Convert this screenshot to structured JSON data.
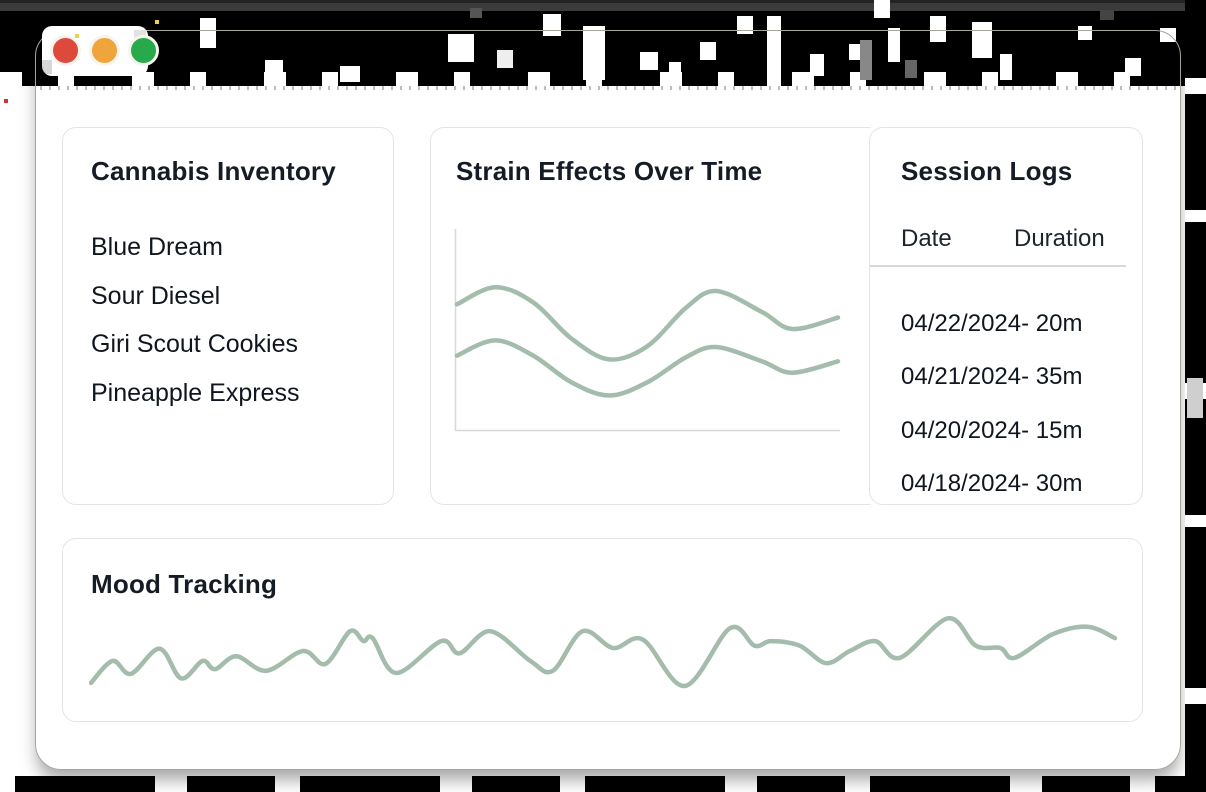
{
  "window": {
    "controls": [
      {
        "name": "close",
        "color": "#dd4a3b"
      },
      {
        "name": "minimize",
        "color": "#f0a53c"
      },
      {
        "name": "zoom",
        "color": "#28a94c"
      }
    ]
  },
  "inventory": {
    "title": "Cannabis Inventory",
    "items": [
      "Blue Dream",
      "Sour Diesel",
      "Giri Scout Cookies",
      "Pineapple Express"
    ]
  },
  "strain_chart": {
    "title": "Strain Effects Over Time"
  },
  "session_logs": {
    "title": "Session Logs",
    "columns": {
      "date": "Date",
      "duration": "Duration"
    },
    "rows": [
      "04/22/2024- 20m",
      "04/21/2024- 35m",
      "04/20/2024- 15m",
      "04/18/2024- 30m"
    ]
  },
  "mood": {
    "title": "Mood Tracking"
  },
  "colors": {
    "line": "#a3bcab",
    "axis": "#d8d8d8",
    "text": "#161c26",
    "card_border": "#e4e4e7"
  },
  "chart_data": [
    {
      "id": "strain",
      "type": "line",
      "title": "Strain Effects Over Time",
      "xlabel": "",
      "ylabel": "",
      "xlim": [
        0,
        1
      ],
      "ylim": [
        0,
        10
      ],
      "grid": false,
      "legend": "none",
      "series": [
        {
          "name": "effect-series-1",
          "points": [
            [
              0,
              6.3
            ],
            [
              0.1,
              7.2
            ],
            [
              0.2,
              6.4
            ],
            [
              0.3,
              4.5
            ],
            [
              0.4,
              3.4
            ],
            [
              0.5,
              4.1
            ],
            [
              0.6,
              6.1
            ],
            [
              0.68,
              7.0
            ],
            [
              0.8,
              5.9
            ],
            [
              0.88,
              5.0
            ],
            [
              1,
              5.6
            ]
          ]
        },
        {
          "name": "effect-series-2",
          "points": [
            [
              0,
              3.6
            ],
            [
              0.1,
              4.4
            ],
            [
              0.2,
              3.6
            ],
            [
              0.3,
              2.2
            ],
            [
              0.4,
              1.5
            ],
            [
              0.5,
              2.2
            ],
            [
              0.6,
              3.5
            ],
            [
              0.68,
              4.05
            ],
            [
              0.8,
              3.3
            ],
            [
              0.88,
              2.7
            ],
            [
              1,
              3.3
            ]
          ]
        }
      ]
    },
    {
      "id": "mood",
      "type": "line",
      "title": "Mood Tracking",
      "xlabel": "",
      "ylabel": "",
      "xlim": [
        0,
        1
      ],
      "ylim": [
        0,
        10
      ],
      "grid": false,
      "legend": "none",
      "series": [
        {
          "name": "mood-series",
          "points": [
            [
              0,
              0.8
            ],
            [
              0.021,
              3.7
            ],
            [
              0.039,
              2.0
            ],
            [
              0.067,
              5.3
            ],
            [
              0.088,
              1.4
            ],
            [
              0.109,
              3.7
            ],
            [
              0.121,
              2.6
            ],
            [
              0.142,
              4.3
            ],
            [
              0.171,
              2.4
            ],
            [
              0.207,
              5.0
            ],
            [
              0.229,
              3.3
            ],
            [
              0.253,
              7.6
            ],
            [
              0.266,
              6.3
            ],
            [
              0.275,
              6.7
            ],
            [
              0.298,
              2.1
            ],
            [
              0.342,
              6.3
            ],
            [
              0.36,
              4.7
            ],
            [
              0.39,
              7.6
            ],
            [
              0.429,
              3.7
            ],
            [
              0.451,
              2.4
            ],
            [
              0.48,
              7.6
            ],
            [
              0.51,
              5.4
            ],
            [
              0.539,
              6.5
            ],
            [
              0.58,
              0.4
            ],
            [
              0.624,
              8.0
            ],
            [
              0.648,
              5.7
            ],
            [
              0.664,
              6.3
            ],
            [
              0.692,
              5.7
            ],
            [
              0.718,
              3.4
            ],
            [
              0.741,
              5.0
            ],
            [
              0.766,
              6.3
            ],
            [
              0.79,
              4.1
            ],
            [
              0.837,
              9.3
            ],
            [
              0.864,
              5.7
            ],
            [
              0.888,
              5.4
            ],
            [
              0.902,
              4.1
            ],
            [
              0.939,
              7.2
            ],
            [
              0.973,
              8.2
            ],
            [
              1,
              6.7
            ]
          ]
        }
      ]
    }
  ]
}
